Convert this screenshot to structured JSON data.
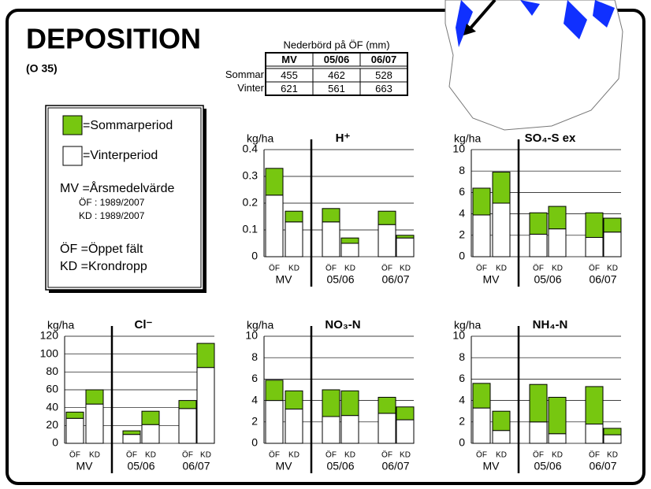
{
  "header": {
    "title": "DEPOSITION",
    "subtitle": "(O 35)"
  },
  "table": {
    "title": "Nederbörd på ÖF (mm)",
    "columns": [
      "MV",
      "05/06",
      "06/07"
    ],
    "rows": [
      {
        "label": "Sommar",
        "values": [
          455,
          462,
          528
        ]
      },
      {
        "label": "Vinter",
        "values": [
          621,
          561,
          663
        ]
      }
    ]
  },
  "legend": {
    "items": [
      "=Sommarperiod",
      "=Vinterperiod",
      "MV =Årsmedelvärde",
      "ÖF : 1989/2007",
      "KD : 1989/2007",
      "ÖF =Öppet fält",
      "KD =Krondropp"
    ]
  },
  "chart_data": [
    {
      "type": "bar",
      "stacked": true,
      "title": "H⁺",
      "y_label": "kg/ha",
      "categories": [
        "ÖF",
        "KD",
        "ÖF",
        "KD",
        "ÖF",
        "KD"
      ],
      "groups": [
        "MV",
        "05/06",
        "06/07"
      ],
      "series": [
        {
          "color": "#ffffff",
          "values": [
            0.23,
            0.13,
            0.13,
            0.05,
            0.12,
            0.07
          ]
        },
        {
          "color": "#77c710",
          "values": [
            0.1,
            0.04,
            0.05,
            0.02,
            0.05,
            0.01
          ]
        }
      ],
      "ylim": [
        0,
        0.4
      ],
      "yticks": [
        0,
        0.1,
        0.2,
        0.3,
        0.4
      ],
      "grid": true
    },
    {
      "type": "bar",
      "stacked": true,
      "title": "SO₄-S ex",
      "y_label": "kg/ha",
      "categories": [
        "ÖF",
        "KD",
        "ÖF",
        "KD",
        "ÖF",
        "KD"
      ],
      "groups": [
        "MV",
        "05/06",
        "06/07"
      ],
      "series": [
        {
          "color": "#ffffff",
          "values": [
            3.9,
            5.0,
            2.1,
            2.6,
            1.8,
            2.3
          ]
        },
        {
          "color": "#77c710",
          "values": [
            2.5,
            2.9,
            2.0,
            2.1,
            2.3,
            1.3
          ]
        }
      ],
      "ylim": [
        0,
        10
      ],
      "yticks": [
        0,
        2,
        4,
        6,
        8,
        10
      ],
      "grid": true
    },
    {
      "type": "bar",
      "stacked": true,
      "title": "Cl⁻",
      "y_label": "kg/ha",
      "categories": [
        "ÖF",
        "KD",
        "ÖF",
        "KD",
        "ÖF",
        "KD"
      ],
      "groups": [
        "MV",
        "05/06",
        "06/07"
      ],
      "series": [
        {
          "color": "#ffffff",
          "values": [
            28,
            44,
            10,
            21,
            39,
            85
          ]
        },
        {
          "color": "#77c710",
          "values": [
            7,
            16,
            4,
            15,
            9,
            27
          ]
        }
      ],
      "ylim": [
        0,
        120
      ],
      "yticks": [
        0,
        20,
        40,
        60,
        80,
        100,
        120
      ],
      "grid": true
    },
    {
      "type": "bar",
      "stacked": true,
      "title": "NO₃-N",
      "y_label": "kg/ha",
      "categories": [
        "ÖF",
        "KD",
        "ÖF",
        "KD",
        "ÖF",
        "KD"
      ],
      "groups": [
        "MV",
        "05/06",
        "06/07"
      ],
      "series": [
        {
          "color": "#ffffff",
          "values": [
            4.0,
            3.2,
            2.5,
            2.6,
            2.8,
            2.2
          ]
        },
        {
          "color": "#77c710",
          "values": [
            1.9,
            1.7,
            2.5,
            2.3,
            1.5,
            1.2
          ]
        }
      ],
      "ylim": [
        0,
        10
      ],
      "yticks": [
        0,
        2,
        4,
        6,
        8,
        10
      ],
      "grid": true
    },
    {
      "type": "bar",
      "stacked": true,
      "title": "NH₄-N",
      "y_label": "kg/ha",
      "categories": [
        "ÖF",
        "KD",
        "ÖF",
        "KD",
        "ÖF",
        "KD"
      ],
      "groups": [
        "MV",
        "05/06",
        "06/07"
      ],
      "series": [
        {
          "color": "#ffffff",
          "values": [
            3.3,
            1.2,
            2.0,
            0.9,
            1.8,
            0.8
          ]
        },
        {
          "color": "#77c710",
          "values": [
            2.3,
            1.8,
            3.5,
            3.4,
            3.5,
            0.6
          ]
        }
      ],
      "ylim": [
        0,
        10
      ],
      "yticks": [
        0,
        2,
        4,
        6,
        8,
        10
      ],
      "grid": true
    }
  ]
}
